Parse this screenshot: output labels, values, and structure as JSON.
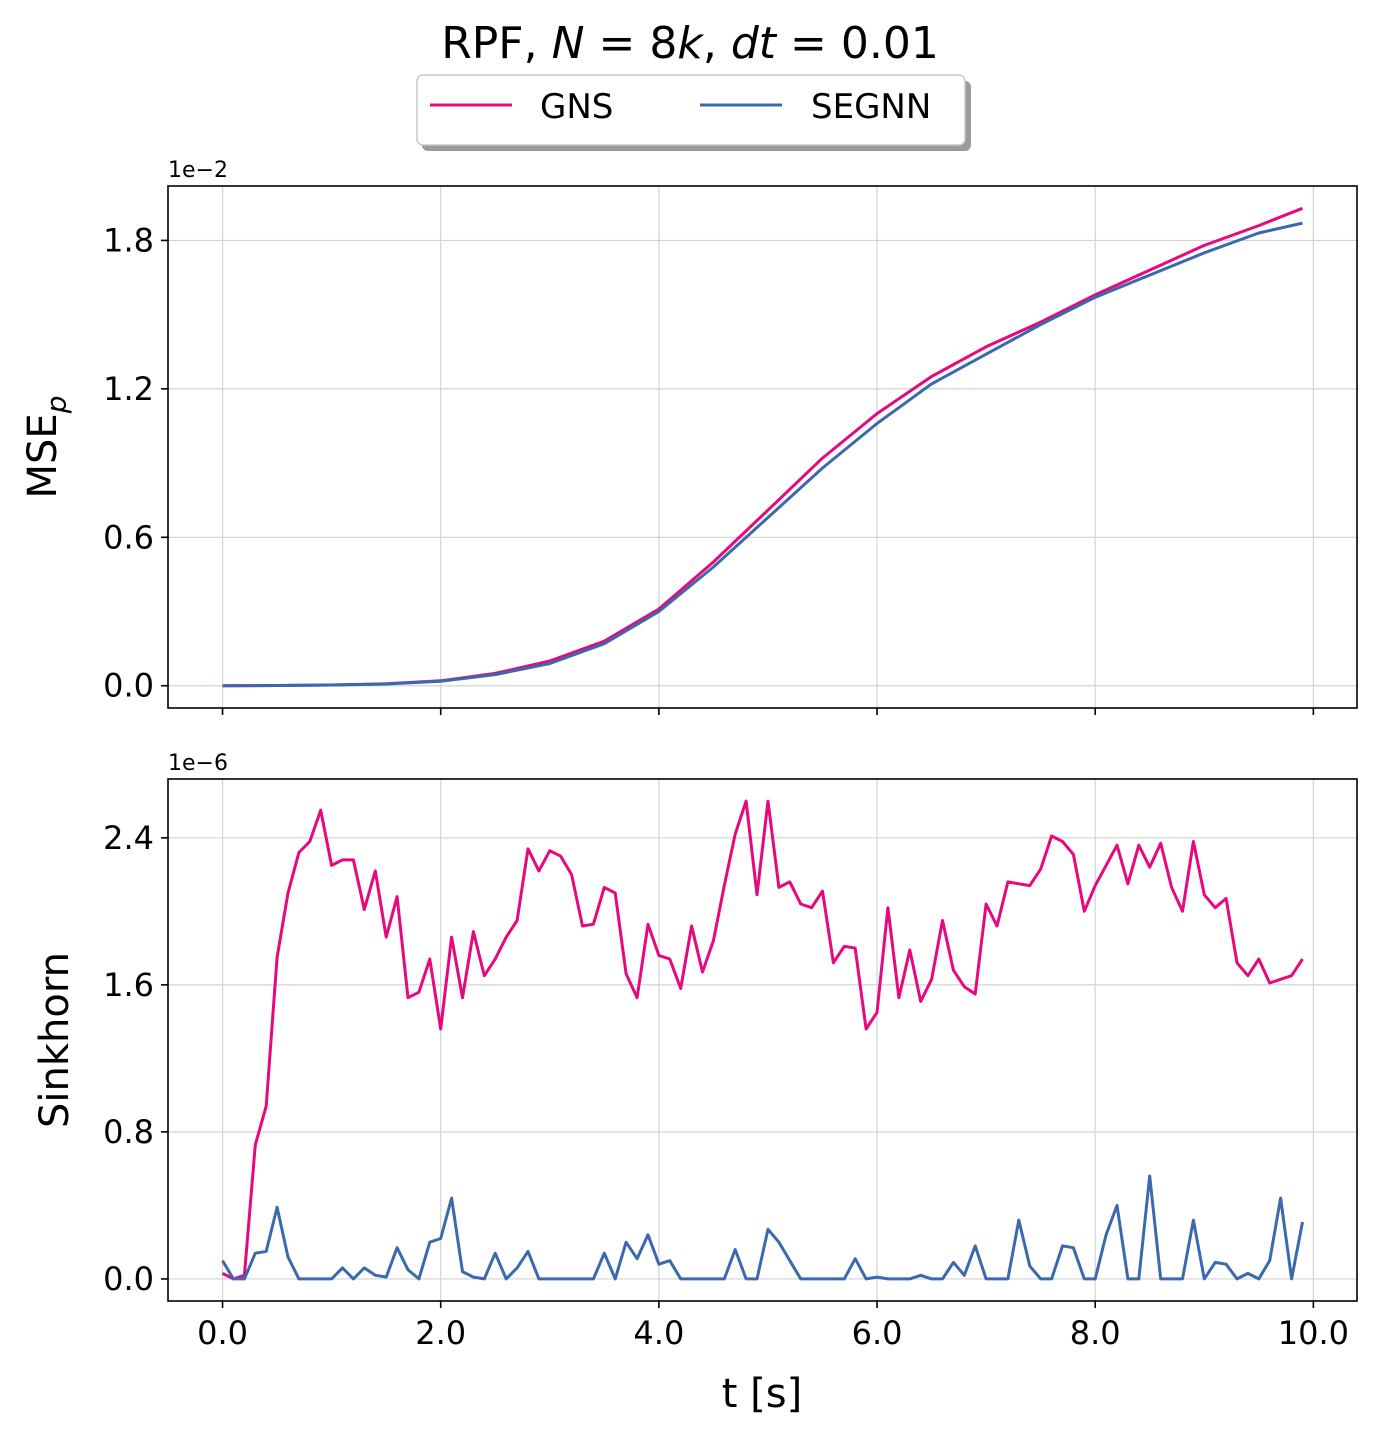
{
  "title": {
    "prefix": "RPF, ",
    "n_var": "N",
    "n_val": " = 8",
    "k": "k",
    "sep": ", ",
    "dt_var": "dt",
    "dt_val": " = 0.01"
  },
  "legend": {
    "entries": [
      {
        "label": "GNS",
        "color": "#e8087e"
      },
      {
        "label": "SEGNN",
        "color": "#3a6aad"
      }
    ]
  },
  "chart_data": [
    {
      "type": "line",
      "title": "RPF, N = 8k, dt = 0.01",
      "ylabel": "MSE",
      "ylabel_sub": "p",
      "xlabel": "",
      "offset_text": "1e−2",
      "xlim": [
        -0.5,
        10.4
      ],
      "ylim": [
        -0.09,
        2.02
      ],
      "yticks": [
        0.0,
        0.6,
        1.2,
        1.8
      ],
      "ytick_labels": [
        "0.0",
        "0.6",
        "1.2",
        "1.8"
      ],
      "xticks": [
        0,
        2,
        4,
        6,
        8,
        10
      ],
      "grid": true,
      "series": [
        {
          "name": "GNS",
          "color": "#e8087e",
          "x": [
            0,
            0.5,
            1.0,
            1.5,
            2.0,
            2.5,
            3.0,
            3.5,
            4.0,
            4.5,
            5.0,
            5.5,
            6.0,
            6.5,
            7.0,
            7.5,
            8.0,
            8.5,
            9.0,
            9.5,
            9.9
          ],
          "y": [
            0.0,
            0.001,
            0.003,
            0.008,
            0.02,
            0.05,
            0.1,
            0.18,
            0.31,
            0.5,
            0.71,
            0.92,
            1.1,
            1.25,
            1.37,
            1.47,
            1.58,
            1.68,
            1.78,
            1.86,
            1.93
          ]
        },
        {
          "name": "SEGNN",
          "color": "#3a6aad",
          "x": [
            0,
            0.5,
            1.0,
            1.5,
            2.0,
            2.5,
            3.0,
            3.5,
            4.0,
            4.5,
            5.0,
            5.5,
            6.0,
            6.5,
            7.0,
            7.5,
            8.0,
            8.5,
            9.0,
            9.5,
            9.9
          ],
          "y": [
            0.0,
            0.001,
            0.003,
            0.007,
            0.018,
            0.045,
            0.09,
            0.17,
            0.3,
            0.48,
            0.68,
            0.88,
            1.06,
            1.22,
            1.34,
            1.46,
            1.57,
            1.66,
            1.75,
            1.83,
            1.87
          ]
        }
      ]
    },
    {
      "type": "line",
      "ylabel": "Sinkhorn",
      "xlabel": "t [s]",
      "offset_text": "1e−6",
      "xlim": [
        -0.5,
        10.4
      ],
      "ylim": [
        -0.12,
        2.72
      ],
      "yticks": [
        0.0,
        0.8,
        1.6,
        2.4
      ],
      "ytick_labels": [
        "0.0",
        "0.8",
        "1.6",
        "2.4"
      ],
      "xticks": [
        0,
        2,
        4,
        6,
        8,
        10
      ],
      "xtick_labels": [
        "0.0",
        "2.0",
        "4.0",
        "6.0",
        "8.0",
        "10.0"
      ],
      "grid": true,
      "series": [
        {
          "name": "GNS",
          "color": "#e8087e",
          "x": [
            0,
            0.1,
            0.2,
            0.3,
            0.4,
            0.5,
            0.6,
            0.7,
            0.8,
            0.9,
            1.0,
            1.1,
            1.2,
            1.3,
            1.4,
            1.5,
            1.6,
            1.7,
            1.8,
            1.9,
            2.0,
            2.1,
            2.2,
            2.3,
            2.4,
            2.5,
            2.6,
            2.7,
            2.8,
            2.9,
            3.0,
            3.1,
            3.2,
            3.3,
            3.4,
            3.5,
            3.6,
            3.7,
            3.8,
            3.9,
            4.0,
            4.1,
            4.2,
            4.3,
            4.4,
            4.5,
            4.6,
            4.7,
            4.8,
            4.9,
            5.0,
            5.1,
            5.2,
            5.3,
            5.4,
            5.5,
            5.6,
            5.7,
            5.8,
            5.9,
            6.0,
            6.1,
            6.2,
            6.3,
            6.4,
            6.5,
            6.6,
            6.7,
            6.8,
            6.9,
            7.0,
            7.1,
            7.2,
            7.3,
            7.4,
            7.5,
            7.6,
            7.7,
            7.8,
            7.9,
            8.0,
            8.1,
            8.2,
            8.3,
            8.4,
            8.5,
            8.6,
            8.7,
            8.8,
            8.9,
            9.0,
            9.1,
            9.2,
            9.3,
            9.4,
            9.5,
            9.6,
            9.7,
            9.8,
            9.9
          ],
          "y": [
            0.03,
            0.0,
            0.02,
            0.73,
            0.94,
            1.75,
            2.1,
            2.32,
            2.38,
            2.55,
            2.25,
            2.28,
            2.28,
            2.01,
            2.22,
            1.86,
            2.08,
            1.53,
            1.56,
            1.74,
            1.36,
            1.86,
            1.53,
            1.89,
            1.65,
            1.74,
            1.86,
            1.95,
            2.34,
            2.22,
            2.33,
            2.3,
            2.2,
            1.92,
            1.93,
            2.13,
            2.1,
            1.66,
            1.53,
            1.93,
            1.76,
            1.74,
            1.58,
            1.92,
            1.67,
            1.84,
            2.14,
            2.42,
            2.6,
            2.09,
            2.6,
            2.13,
            2.16,
            2.04,
            2.02,
            2.11,
            1.72,
            1.81,
            1.8,
            1.36,
            1.45,
            2.02,
            1.53,
            1.79,
            1.51,
            1.63,
            1.95,
            1.68,
            1.59,
            1.55,
            2.04,
            1.92,
            2.16,
            2.15,
            2.14,
            2.23,
            2.41,
            2.38,
            2.31,
            2.0,
            2.14,
            2.25,
            2.36,
            2.15,
            2.36,
            2.24,
            2.37,
            2.13,
            2.0,
            2.38,
            2.09,
            2.02,
            2.07,
            1.72,
            1.65,
            1.74,
            1.61,
            1.63,
            1.65,
            1.74
          ]
        },
        {
          "name": "SEGNN",
          "color": "#3a6aad",
          "x": [
            0,
            0.1,
            0.2,
            0.3,
            0.4,
            0.5,
            0.6,
            0.7,
            0.8,
            0.9,
            1.0,
            1.1,
            1.2,
            1.3,
            1.4,
            1.5,
            1.6,
            1.7,
            1.8,
            1.9,
            2.0,
            2.1,
            2.2,
            2.3,
            2.4,
            2.5,
            2.6,
            2.7,
            2.8,
            2.9,
            3.0,
            3.1,
            3.2,
            3.3,
            3.4,
            3.5,
            3.6,
            3.7,
            3.8,
            3.9,
            4.0,
            4.1,
            4.2,
            4.3,
            4.4,
            4.5,
            4.6,
            4.7,
            4.8,
            4.9,
            5.0,
            5.1,
            5.2,
            5.3,
            5.4,
            5.5,
            5.6,
            5.7,
            5.8,
            5.9,
            6.0,
            6.1,
            6.2,
            6.3,
            6.4,
            6.5,
            6.6,
            6.7,
            6.8,
            6.9,
            7.0,
            7.1,
            7.2,
            7.3,
            7.4,
            7.5,
            7.6,
            7.7,
            7.8,
            7.9,
            8.0,
            8.1,
            8.2,
            8.3,
            8.4,
            8.5,
            8.6,
            8.7,
            8.8,
            8.9,
            9.0,
            9.1,
            9.2,
            9.3,
            9.4,
            9.5,
            9.6,
            9.7,
            9.8,
            9.9
          ],
          "y": [
            0.1,
            0.0,
            0.0,
            0.14,
            0.15,
            0.39,
            0.12,
            0.0,
            0.0,
            0.0,
            0.0,
            0.06,
            0.0,
            0.06,
            0.02,
            0.01,
            0.17,
            0.05,
            0.0,
            0.2,
            0.22,
            0.44,
            0.04,
            0.01,
            0.0,
            0.14,
            0.0,
            0.06,
            0.15,
            0.0,
            0.0,
            0.0,
            0.0,
            0.0,
            0.0,
            0.14,
            0.0,
            0.2,
            0.11,
            0.24,
            0.08,
            0.1,
            0.0,
            0.0,
            0.0,
            0.0,
            0.0,
            0.16,
            0.0,
            0.0,
            0.27,
            0.2,
            0.1,
            0.0,
            0.0,
            0.0,
            0.0,
            0.0,
            0.11,
            0.0,
            0.01,
            0.0,
            0.0,
            0.0,
            0.02,
            0.0,
            0.0,
            0.09,
            0.02,
            0.18,
            0.0,
            0.0,
            0.0,
            0.32,
            0.07,
            0.0,
            0.0,
            0.18,
            0.17,
            0.0,
            0.0,
            0.24,
            0.4,
            0.0,
            0.0,
            0.56,
            0.0,
            0.0,
            0.0,
            0.32,
            0.0,
            0.09,
            0.08,
            0.0,
            0.03,
            0.0,
            0.1,
            0.44,
            0.0,
            0.31
          ]
        }
      ]
    }
  ]
}
